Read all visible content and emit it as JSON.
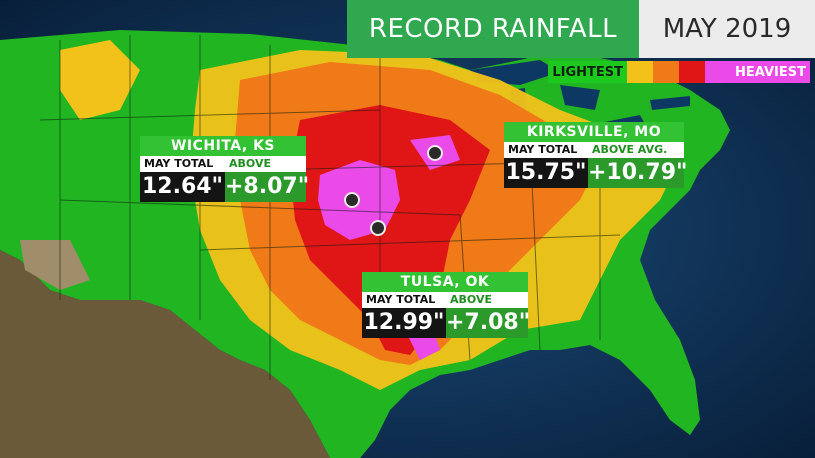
{
  "title": "RECORD RAINFALL",
  "date": "MAY 2019",
  "legend": {
    "low_label": "LIGHTEST",
    "high_label": "HEAVIEST",
    "colors": [
      "#1ec91e",
      "#f3c21a",
      "#f07a18",
      "#e01616",
      "#ea4ae8"
    ]
  },
  "callouts": [
    {
      "city": "WICHITA, KS",
      "total_label": "MAY TOTAL",
      "total": "12.64\"",
      "above_label": "ABOVE AVG.",
      "above": "+8.07\""
    },
    {
      "city": "KIRKSVILLE, MO",
      "total_label": "MAY TOTAL",
      "total": "15.75\"",
      "above_label": "ABOVE AVG.",
      "above": "+10.79\""
    },
    {
      "city": "TULSA, OK",
      "total_label": "MAY TOTAL",
      "total": "12.99\"",
      "above_label": "ABOVE AVG.",
      "above": "+7.08\""
    }
  ]
}
